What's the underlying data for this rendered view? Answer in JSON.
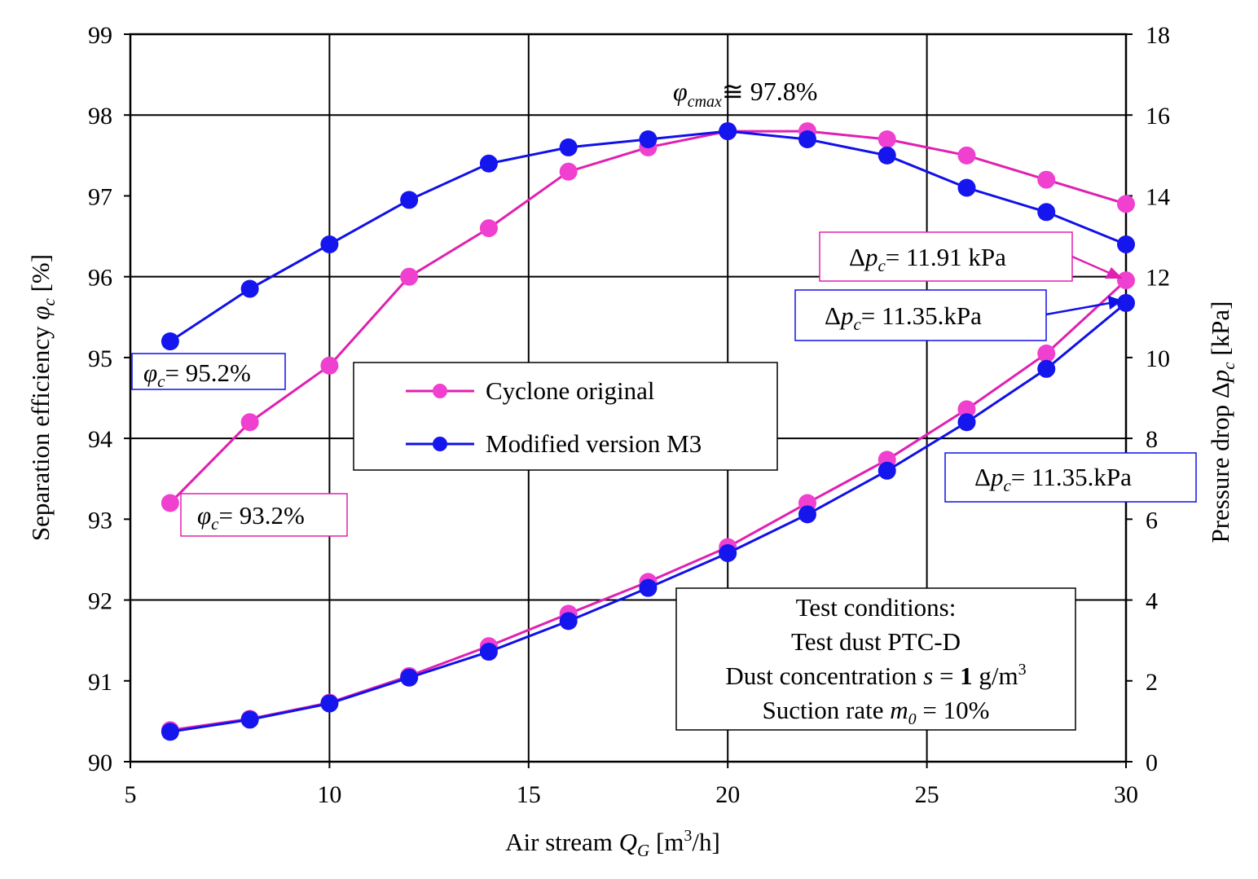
{
  "chart_data": {
    "type": "line",
    "x": [
      6,
      8,
      10,
      12,
      14,
      16,
      18,
      20,
      22,
      24,
      26,
      28,
      30
    ],
    "xlim": [
      5,
      30
    ],
    "x_ticks": [
      "5",
      "10",
      "15",
      "20",
      "25",
      "30"
    ],
    "ylim_left": [
      90,
      99
    ],
    "y_left_ticks": [
      "90",
      "91",
      "92",
      "93",
      "94",
      "95",
      "96",
      "97",
      "98",
      "99"
    ],
    "ylim_right": [
      0,
      18
    ],
    "y_right_ticks": [
      "0",
      "2",
      "4",
      "6",
      "8",
      "10",
      "12",
      "14",
      "16",
      "18"
    ],
    "xlabel": "Air stream Q_G [m³/h]",
    "ylabel_left": "Separation efficiency φ_c [%]",
    "ylabel_right": "Pressure drop Δp_c [kPa]",
    "grid": true,
    "legend_position": "upper-center",
    "series": [
      {
        "name": "Cyclone original",
        "axis": "left",
        "color": "#e020b0",
        "values": [
          93.2,
          94.2,
          94.9,
          96.0,
          96.6,
          97.3,
          97.6,
          97.8,
          97.8,
          97.7,
          97.5,
          97.2,
          96.9
        ]
      },
      {
        "name": "Modified version M3",
        "axis": "left",
        "color": "#1010e8",
        "values": [
          95.2,
          95.85,
          96.4,
          96.95,
          97.4,
          97.6,
          97.7,
          97.8,
          97.7,
          97.5,
          97.1,
          96.8,
          96.4
        ]
      },
      {
        "name": "Cyclone original",
        "axis": "right",
        "color": "#e020b0",
        "values": [
          0.78,
          1.06,
          1.46,
          2.12,
          2.86,
          3.66,
          4.45,
          5.31,
          6.4,
          7.47,
          8.72,
          10.1,
          11.91
        ]
      },
      {
        "name": "Modified version M3",
        "axis": "right",
        "color": "#1010e8",
        "values": [
          0.74,
          1.04,
          1.44,
          2.08,
          2.72,
          3.48,
          4.3,
          5.16,
          6.12,
          7.2,
          8.4,
          9.72,
          11.35
        ]
      }
    ],
    "annotations": {
      "peak": "≅ 97.8%",
      "phi_blue": "= 95.2%",
      "phi_pink": "= 93.2%",
      "dp_pink": "= 11.91 kPa",
      "dp_blue_1": "= 11.35.kPa",
      "dp_blue_2": "= 11.35.kPa"
    },
    "test_conditions": {
      "line1": "Test conditions:",
      "line2": "Test dust PTC-D",
      "line3": "Dust concentration",
      "line4": "Suction rate"
    }
  }
}
